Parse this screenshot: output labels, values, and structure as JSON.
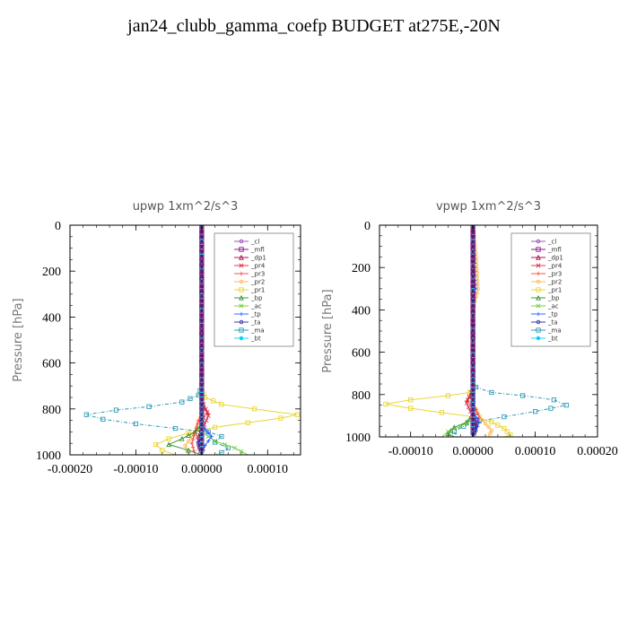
{
  "title": "jan24_clubb_gamma_coefp  BUDGET at275E,-20N",
  "legend_labels": [
    "_cl",
    "_mfl",
    "_dp1",
    "_pr4",
    "_pr3",
    "_pr2",
    "_pr1",
    "_bp",
    "_ac",
    "_tp",
    "_ta",
    "_ma",
    "_bt"
  ],
  "series_colors": {
    "_cl": "#8e44ad",
    "_mfl": "#800080",
    "_dp1": "#a0003c",
    "_pr4": "#d7263d",
    "_pr3": "#ff3b3b",
    "_pr2": "#ffb347",
    "_pr1": "#e8d21d",
    "_bp": "#2e8b2e",
    "_ac": "#66cc33",
    "_tp": "#1e5aff",
    "_ta": "#2222aa",
    "_ma": "#1b8fb0",
    "_bt": "#00d0ff"
  },
  "chart_data": [
    {
      "type": "line",
      "title": "upwp   1xm^2/s^3",
      "ylabel": "Pressure [hPa]",
      "xlim": [
        -0.0002,
        0.00015
      ],
      "ylim": [
        1000,
        0
      ],
      "xticks": [
        -0.0002,
        -0.0001,
        0.0,
        0.0001
      ],
      "xtick_labels": [
        "-0.00020",
        "-0.00010",
        "0.00000",
        "0.00010"
      ],
      "yticks": [
        0,
        200,
        400,
        600,
        800,
        1000
      ],
      "ytick_labels": [
        "0",
        "200",
        "400",
        "600",
        "800",
        "1000"
      ],
      "legend": "top-right",
      "series": [
        {
          "name": "_ma",
          "points": [
            [
              0,
              0
            ],
            [
              0,
              700
            ],
            [
              -5e-06,
              740
            ],
            [
              -3e-05,
              770
            ],
            [
              -8e-05,
              790
            ],
            [
              -0.00013,
              805
            ],
            [
              -0.000175,
              825
            ],
            [
              -0.00015,
              845
            ],
            [
              -0.0001,
              865
            ],
            [
              -4e-05,
              885
            ],
            [
              1e-05,
              900
            ],
            [
              3e-05,
              920
            ],
            [
              2e-05,
              945
            ],
            [
              4e-05,
              970
            ],
            [
              3e-05,
              990
            ],
            [
              2e-05,
              1000
            ]
          ]
        },
        {
          "name": "_pr1",
          "points": [
            [
              0,
              0
            ],
            [
              0,
              720
            ],
            [
              5e-06,
              750
            ],
            [
              3e-05,
              780
            ],
            [
              8e-05,
              800
            ],
            [
              0.000145,
              825
            ],
            [
              0.00012,
              840
            ],
            [
              7e-05,
              860
            ],
            [
              2e-05,
              880
            ],
            [
              -2e-05,
              905
            ],
            [
              -5e-05,
              930
            ],
            [
              -7e-05,
              955
            ],
            [
              -6e-05,
              980
            ],
            [
              -4e-05,
              1000
            ]
          ]
        },
        {
          "name": "_pr2",
          "points": [
            [
              0,
              0
            ],
            [
              0,
              820
            ],
            [
              -1e-05,
              900
            ],
            [
              -2.5e-05,
              960
            ],
            [
              -2e-05,
              1000
            ]
          ]
        },
        {
          "name": "_pr3",
          "points": [
            [
              0,
              0
            ],
            [
              0,
              780
            ],
            [
              1e-05,
              820
            ],
            [
              -5e-06,
              850
            ],
            [
              -1e-05,
              900
            ],
            [
              -1.5e-05,
              950
            ],
            [
              -1e-05,
              1000
            ]
          ]
        },
        {
          "name": "_pr4",
          "points": [
            [
              0,
              0
            ],
            [
              0,
              760
            ],
            [
              6e-06,
              800
            ],
            [
              1e-05,
              830
            ],
            [
              4e-06,
              870
            ],
            [
              -6e-06,
              920
            ],
            [
              -4e-06,
              970
            ],
            [
              0,
              1000
            ]
          ]
        },
        {
          "name": "_bp",
          "points": [
            [
              0,
              0
            ],
            [
              0,
              870
            ],
            [
              -1e-05,
              900
            ],
            [
              -3e-05,
              930
            ],
            [
              -5e-05,
              955
            ],
            [
              -2e-05,
              980
            ],
            [
              0,
              1000
            ]
          ]
        },
        {
          "name": "_ac",
          "points": [
            [
              0,
              0
            ],
            [
              0,
              900
            ],
            [
              2e-05,
              940
            ],
            [
              5e-05,
              970
            ],
            [
              7e-05,
              1000
            ]
          ]
        },
        {
          "name": "_tp",
          "points": [
            [
              0,
              0
            ],
            [
              0,
              870
            ],
            [
              1.5e-05,
              920
            ],
            [
              5e-06,
              960
            ],
            [
              0,
              1000
            ]
          ]
        },
        {
          "name": "_ta",
          "points": [
            [
              0,
              0
            ],
            [
              0,
              900
            ],
            [
              -5e-06,
              950
            ],
            [
              0,
              1000
            ]
          ]
        },
        {
          "name": "_dp1",
          "points": [
            [
              0,
              0
            ],
            [
              0,
              1000
            ]
          ]
        },
        {
          "name": "_mfl",
          "points": [
            [
              0,
              0
            ],
            [
              0,
              1000
            ]
          ]
        },
        {
          "name": "_cl",
          "points": [
            [
              0,
              0
            ],
            [
              0,
              1000
            ]
          ]
        },
        {
          "name": "_bt",
          "points": [
            [
              0,
              0
            ],
            [
              0,
              1000
            ]
          ]
        }
      ]
    },
    {
      "type": "line",
      "title": "vpwp   1xm^2/s^3",
      "ylabel": "Pressure [hPa]",
      "xlim": [
        -0.00015,
        0.0002
      ],
      "ylim": [
        1000,
        0
      ],
      "xticks": [
        -0.0001,
        0.0,
        0.0001,
        0.0002
      ],
      "xtick_labels": [
        "-0.00010",
        "0.00000",
        "0.00010",
        "0.00020"
      ],
      "yticks": [
        0,
        200,
        400,
        600,
        800,
        1000
      ],
      "ytick_labels": [
        "0",
        "200",
        "400",
        "600",
        "800",
        "1000"
      ],
      "legend": "top-right",
      "series": [
        {
          "name": "_ma",
          "points": [
            [
              0,
              0
            ],
            [
              0,
              740
            ],
            [
              5e-06,
              765
            ],
            [
              3e-05,
              790
            ],
            [
              8e-05,
              805
            ],
            [
              0.00013,
              825
            ],
            [
              0.00015,
              850
            ],
            [
              0.0001,
              880
            ],
            [
              5e-05,
              905
            ],
            [
              1e-05,
              925
            ],
            [
              -1.5e-05,
              950
            ],
            [
              -3e-05,
              975
            ],
            [
              -2.5e-05,
              1000
            ]
          ]
        },
        {
          "name": "_pr1",
          "points": [
            [
              0,
              0
            ],
            [
              0,
              770
            ],
            [
              -5e-06,
              790
            ],
            [
              -4e-05,
              805
            ],
            [
              -0.0001,
              825
            ],
            [
              -0.00014,
              845
            ],
            [
              -0.0001,
              865
            ],
            [
              -5e-05,
              885
            ],
            [
              0,
              905
            ],
            [
              3e-05,
              930
            ],
            [
              5e-05,
              960
            ],
            [
              6e-05,
              990
            ],
            [
              5e-05,
              1000
            ]
          ]
        },
        {
          "name": "_pr2",
          "points": [
            [
              0,
              0
            ],
            [
              5e-06,
              150
            ],
            [
              8e-06,
              300
            ],
            [
              0,
              400
            ],
            [
              0,
              850
            ],
            [
              1.5e-05,
              920
            ],
            [
              3e-05,
              970
            ],
            [
              2.5e-05,
              1000
            ]
          ]
        },
        {
          "name": "_pr3",
          "points": [
            [
              0,
              0
            ],
            [
              0,
              790
            ],
            [
              -1e-05,
              830
            ],
            [
              5e-06,
              870
            ],
            [
              1e-05,
              910
            ],
            [
              5e-06,
              950
            ],
            [
              0,
              1000
            ]
          ]
        },
        {
          "name": "_pr4",
          "points": [
            [
              0,
              0
            ],
            [
              0,
              770
            ],
            [
              -6e-06,
              810
            ],
            [
              -1e-05,
              840
            ],
            [
              -4e-06,
              880
            ],
            [
              6e-06,
              930
            ],
            [
              4e-06,
              970
            ],
            [
              0,
              1000
            ]
          ]
        },
        {
          "name": "_bp",
          "points": [
            [
              0,
              0
            ],
            [
              0,
              900
            ],
            [
              -1e-05,
              930
            ],
            [
              -3e-05,
              955
            ],
            [
              -4e-05,
              985
            ],
            [
              -3e-05,
              1000
            ]
          ]
        },
        {
          "name": "_ac",
          "points": [
            [
              0,
              0
            ],
            [
              0,
              920
            ],
            [
              -2e-05,
              950
            ],
            [
              -4e-05,
              975
            ],
            [
              -5e-05,
              1000
            ]
          ]
        },
        {
          "name": "_tp",
          "points": [
            [
              0,
              0
            ],
            [
              4e-06,
              300
            ],
            [
              0,
              400
            ],
            [
              0,
              880
            ],
            [
              1e-05,
              930
            ],
            [
              5e-06,
              970
            ],
            [
              0,
              1000
            ]
          ]
        },
        {
          "name": "_ta",
          "points": [
            [
              0,
              0
            ],
            [
              0,
              900
            ],
            [
              5e-06,
              950
            ],
            [
              0,
              1000
            ]
          ]
        },
        {
          "name": "_dp1",
          "points": [
            [
              0,
              0
            ],
            [
              0,
              1000
            ]
          ]
        },
        {
          "name": "_mfl",
          "points": [
            [
              0,
              0
            ],
            [
              0,
              1000
            ]
          ]
        },
        {
          "name": "_cl",
          "points": [
            [
              0,
              0
            ],
            [
              0,
              1000
            ]
          ]
        },
        {
          "name": "_bt",
          "points": [
            [
              0,
              0
            ],
            [
              0,
              1000
            ]
          ]
        }
      ]
    }
  ]
}
